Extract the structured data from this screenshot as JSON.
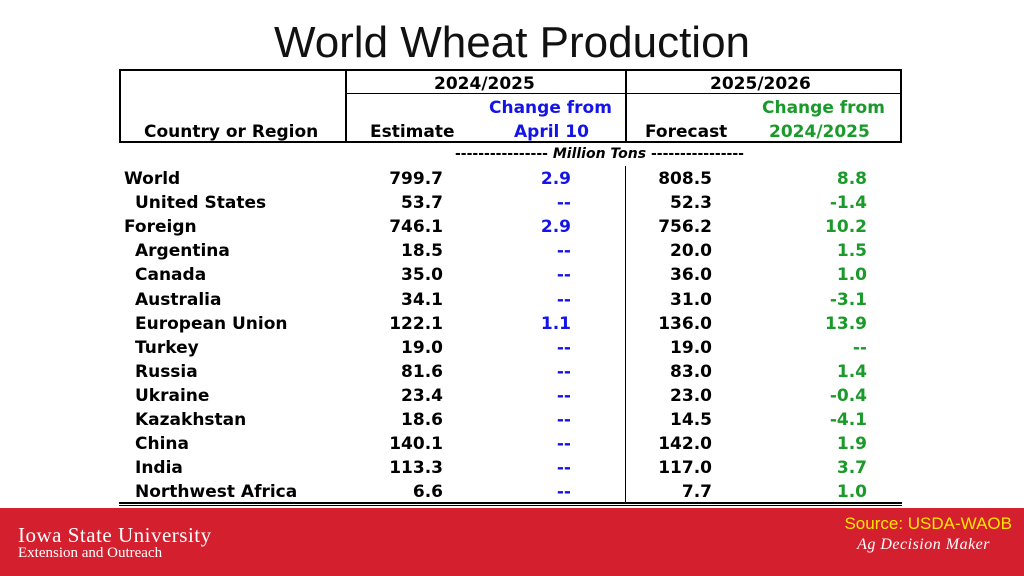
{
  "title": "World Wheat Production",
  "header": {
    "col_label": "Country or Region",
    "year1": "2024/2025",
    "year2": "2025/2026",
    "estimate": "Estimate",
    "forecast": "Forecast",
    "change_from": "Change from",
    "april10": "April 10",
    "change_from2": "Change from",
    "prev_year": "2024/2025"
  },
  "units": {
    "dashes_left": "----------------",
    "label": "Million Tons",
    "dashes_right": "----------------"
  },
  "chart_data": {
    "type": "table",
    "columns": [
      "Country or Region",
      "2024/2025 Estimate",
      "2024/2025 Change from April 10",
      "2025/2026 Forecast",
      "2025/2026 Change from 2024/2025"
    ],
    "rows": [
      {
        "name": "World",
        "estimate": "799.7",
        "change1": "2.9",
        "forecast": "808.5",
        "change2": "8.8"
      },
      {
        "name": "United States",
        "estimate": "53.7",
        "change1": "--",
        "forecast": "52.3",
        "change2": "-1.4"
      },
      {
        "name": "Foreign",
        "estimate": "746.1",
        "change1": "2.9",
        "forecast": "756.2",
        "change2": "10.2"
      },
      {
        "name": "Argentina",
        "estimate": "18.5",
        "change1": "--",
        "forecast": "20.0",
        "change2": "1.5"
      },
      {
        "name": "Canada",
        "estimate": "35.0",
        "change1": "--",
        "forecast": "36.0",
        "change2": "1.0"
      },
      {
        "name": "Australia",
        "estimate": "34.1",
        "change1": "--",
        "forecast": "31.0",
        "change2": "-3.1"
      },
      {
        "name": "European Union",
        "estimate": "122.1",
        "change1": "1.1",
        "forecast": "136.0",
        "change2": "13.9"
      },
      {
        "name": "Turkey",
        "estimate": "19.0",
        "change1": "--",
        "forecast": "19.0",
        "change2": "--"
      },
      {
        "name": "Russia",
        "estimate": "81.6",
        "change1": "--",
        "forecast": "83.0",
        "change2": "1.4"
      },
      {
        "name": "Ukraine",
        "estimate": "23.4",
        "change1": "--",
        "forecast": "23.0",
        "change2": "-0.4"
      },
      {
        "name": "Kazakhstan",
        "estimate": "18.6",
        "change1": "--",
        "forecast": "14.5",
        "change2": "-4.1"
      },
      {
        "name": "China",
        "estimate": "140.1",
        "change1": "--",
        "forecast": "142.0",
        "change2": "1.9"
      },
      {
        "name": "India",
        "estimate": "113.3",
        "change1": "--",
        "forecast": "117.0",
        "change2": "3.7"
      },
      {
        "name": "Northwest Africa",
        "estimate": "6.6",
        "change1": "--",
        "forecast": "7.7",
        "change2": "1.0"
      }
    ],
    "indented": [
      "United States",
      "Argentina",
      "Canada",
      "Australia",
      "European Union",
      "Turkey",
      "Russia",
      "Ukraine",
      "Kazakhstan",
      "China",
      "India",
      "Northwest Africa"
    ]
  },
  "footer": {
    "institution": "Iowa State University",
    "unit": "Extension and Outreach",
    "source": "Source: USDA-WAOB",
    "program": "Ag Decision Maker"
  },
  "colors": {
    "change_blue": "#1414e6",
    "change_green": "#1a9a2a",
    "footer_red": "#d31f2e",
    "source_yellow": "#ffe600"
  }
}
